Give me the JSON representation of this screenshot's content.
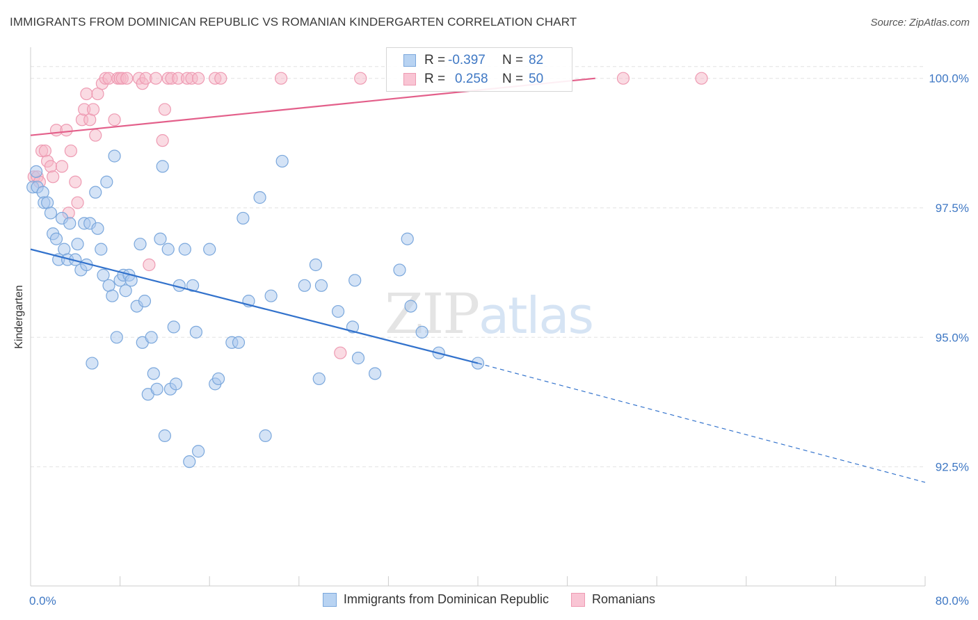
{
  "title": "IMMIGRANTS FROM DOMINICAN REPUBLIC VS ROMANIAN KINDERGARTEN CORRELATION CHART",
  "source": "Source: ZipAtlas.com",
  "watermark": {
    "zip": "ZIP",
    "atlas": "atlas"
  },
  "legend": {
    "blue": {
      "r_label": "R =",
      "r_value": "-0.397",
      "n_label": "N =",
      "n_value": "82"
    },
    "pink": {
      "r_label": "R =",
      "r_value": "0.258",
      "n_label": "N =",
      "n_value": "50"
    }
  },
  "bottom_legend": {
    "blue": "Immigrants from Dominican Republic",
    "pink": "Romanians"
  },
  "colors": {
    "blue_fill": "#a9c8ee",
    "blue_stroke": "#7aa7dc",
    "blue_line": "#3272cc",
    "pink_fill": "#f5b7c8",
    "pink_stroke": "#ee9ab2",
    "pink_line": "#e35f8a",
    "axis_label": "#3f78c4"
  },
  "chart_data": {
    "type": "scatter",
    "xlabel": "",
    "ylabel": "Kindergarten",
    "xlim": [
      0,
      80
    ],
    "ylim": [
      90.2,
      100.6
    ],
    "x_tick_labels": [
      "0.0%",
      "80.0%"
    ],
    "y_ticks": [
      92.5,
      95.0,
      97.5,
      100.0
    ],
    "y_tick_labels": [
      "92.5%",
      "95.0%",
      "97.5%",
      "100.0%"
    ],
    "series": [
      {
        "name": "Immigrants from Dominican Republic",
        "color": "blue",
        "trend": {
          "x0": 0,
          "y0": 96.7,
          "x1": 40,
          "y1": 94.5,
          "x_dash_end": 80,
          "y_dash_end": 92.2
        },
        "points": [
          [
            0.2,
            97.9
          ],
          [
            0.5,
            98.2
          ],
          [
            0.6,
            97.9
          ],
          [
            1.1,
            97.8
          ],
          [
            1.2,
            97.6
          ],
          [
            1.5,
            97.6
          ],
          [
            1.8,
            97.4
          ],
          [
            2.0,
            97.0
          ],
          [
            2.3,
            96.9
          ],
          [
            2.5,
            96.5
          ],
          [
            2.8,
            97.3
          ],
          [
            3.0,
            96.7
          ],
          [
            3.3,
            96.5
          ],
          [
            3.5,
            97.2
          ],
          [
            4.0,
            96.5
          ],
          [
            4.2,
            96.8
          ],
          [
            4.5,
            96.3
          ],
          [
            4.8,
            97.2
          ],
          [
            5.0,
            96.4
          ],
          [
            5.3,
            97.2
          ],
          [
            5.5,
            94.5
          ],
          [
            5.8,
            97.8
          ],
          [
            6.0,
            97.1
          ],
          [
            6.3,
            96.7
          ],
          [
            6.5,
            96.2
          ],
          [
            6.8,
            98.0
          ],
          [
            7.0,
            96.0
          ],
          [
            7.3,
            95.8
          ],
          [
            7.5,
            98.5
          ],
          [
            7.7,
            95.0
          ],
          [
            8.0,
            96.1
          ],
          [
            8.3,
            96.2
          ],
          [
            8.5,
            95.9
          ],
          [
            8.8,
            96.2
          ],
          [
            9.0,
            96.1
          ],
          [
            9.5,
            95.6
          ],
          [
            9.8,
            96.8
          ],
          [
            10.0,
            94.9
          ],
          [
            10.2,
            95.7
          ],
          [
            10.5,
            93.9
          ],
          [
            10.8,
            95.0
          ],
          [
            11.0,
            94.3
          ],
          [
            11.3,
            94.0
          ],
          [
            11.6,
            96.9
          ],
          [
            11.8,
            98.3
          ],
          [
            12.0,
            93.1
          ],
          [
            12.3,
            96.7
          ],
          [
            12.5,
            94.0
          ],
          [
            12.8,
            95.2
          ],
          [
            13.0,
            94.1
          ],
          [
            13.3,
            96.0
          ],
          [
            13.8,
            96.7
          ],
          [
            14.2,
            92.6
          ],
          [
            14.5,
            96.0
          ],
          [
            14.8,
            95.1
          ],
          [
            15.0,
            92.8
          ],
          [
            16.0,
            96.7
          ],
          [
            16.5,
            94.1
          ],
          [
            16.8,
            94.2
          ],
          [
            18.0,
            94.9
          ],
          [
            18.6,
            94.9
          ],
          [
            19.0,
            97.3
          ],
          [
            19.5,
            95.7
          ],
          [
            20.5,
            97.7
          ],
          [
            21.0,
            93.1
          ],
          [
            21.5,
            95.8
          ],
          [
            22.5,
            98.4
          ],
          [
            24.5,
            96.0
          ],
          [
            25.5,
            96.4
          ],
          [
            25.8,
            94.2
          ],
          [
            26.0,
            96.0
          ],
          [
            27.5,
            95.5
          ],
          [
            28.8,
            95.2
          ],
          [
            29.0,
            96.1
          ],
          [
            29.3,
            94.6
          ],
          [
            30.8,
            94.3
          ],
          [
            33.0,
            96.3
          ],
          [
            33.7,
            96.9
          ],
          [
            34.0,
            95.6
          ],
          [
            35.0,
            95.1
          ],
          [
            36.5,
            94.7
          ],
          [
            40.0,
            94.5
          ]
        ]
      },
      {
        "name": "Romanians",
        "color": "pink",
        "trend": {
          "x0": 0,
          "y0": 98.9,
          "x1": 50.5,
          "y1": 100.0
        },
        "points": [
          [
            0.3,
            98.1
          ],
          [
            0.6,
            98.1
          ],
          [
            0.8,
            98.0
          ],
          [
            1.0,
            98.6
          ],
          [
            1.3,
            98.6
          ],
          [
            1.5,
            98.4
          ],
          [
            1.8,
            98.3
          ],
          [
            2.0,
            98.1
          ],
          [
            2.3,
            99.0
          ],
          [
            2.8,
            98.3
          ],
          [
            3.2,
            99.0
          ],
          [
            3.4,
            97.4
          ],
          [
            3.6,
            98.6
          ],
          [
            4.0,
            98.0
          ],
          [
            4.2,
            97.6
          ],
          [
            4.6,
            99.2
          ],
          [
            4.8,
            99.4
          ],
          [
            5.0,
            99.7
          ],
          [
            5.3,
            99.2
          ],
          [
            5.6,
            99.4
          ],
          [
            5.8,
            98.9
          ],
          [
            6.0,
            99.7
          ],
          [
            6.4,
            99.9
          ],
          [
            6.7,
            100.0
          ],
          [
            7.0,
            100.0
          ],
          [
            7.5,
            99.2
          ],
          [
            7.8,
            100.0
          ],
          [
            8.0,
            100.0
          ],
          [
            8.2,
            100.0
          ],
          [
            8.6,
            100.0
          ],
          [
            9.7,
            100.0
          ],
          [
            10.0,
            99.9
          ],
          [
            10.3,
            100.0
          ],
          [
            10.6,
            96.4
          ],
          [
            11.2,
            100.0
          ],
          [
            11.8,
            98.8
          ],
          [
            12.0,
            99.4
          ],
          [
            12.3,
            100.0
          ],
          [
            12.6,
            100.0
          ],
          [
            13.2,
            100.0
          ],
          [
            14.0,
            100.0
          ],
          [
            14.4,
            100.0
          ],
          [
            15.0,
            100.0
          ],
          [
            16.5,
            100.0
          ],
          [
            17.0,
            100.0
          ],
          [
            22.4,
            100.0
          ],
          [
            27.7,
            94.7
          ],
          [
            29.5,
            100.0
          ],
          [
            53.0,
            100.0
          ],
          [
            60.0,
            100.0
          ]
        ]
      }
    ]
  }
}
